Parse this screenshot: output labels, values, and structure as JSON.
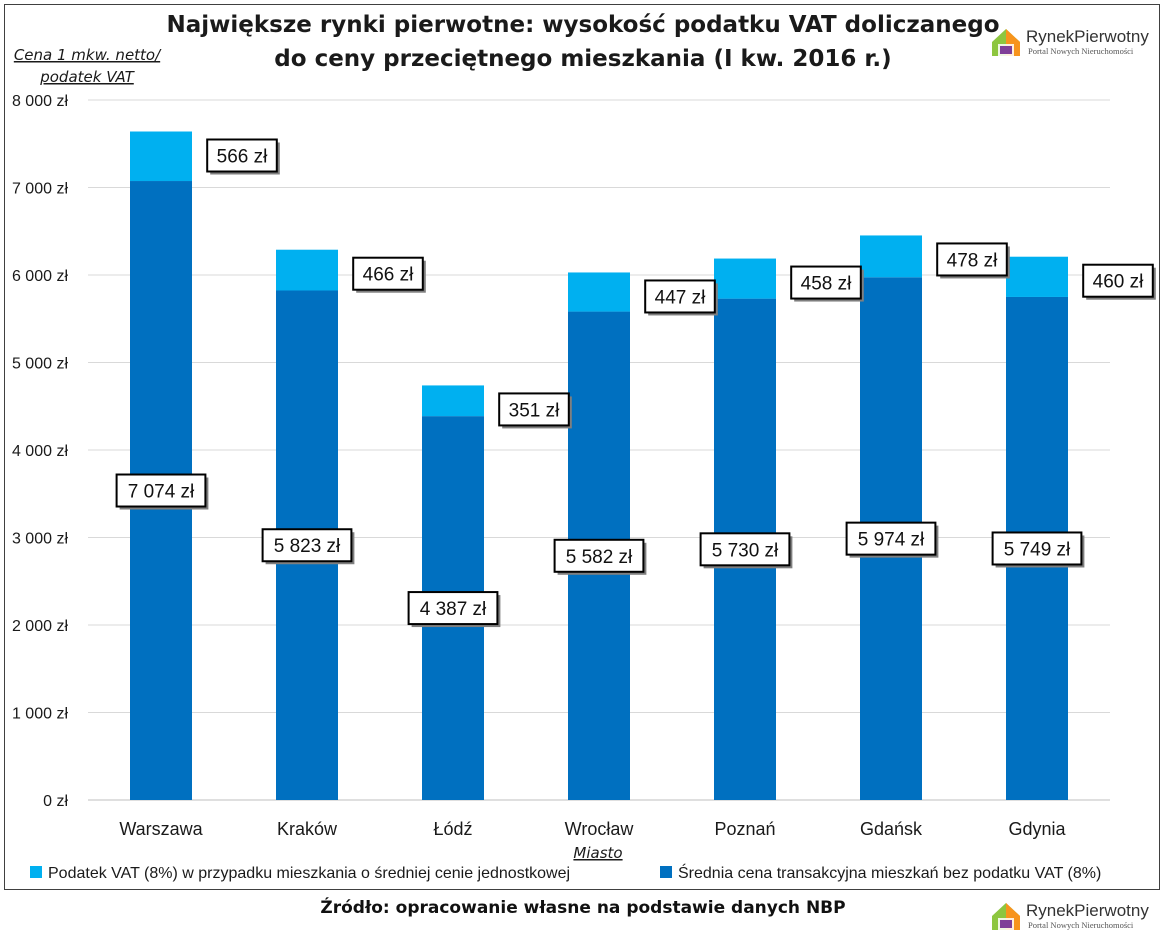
{
  "title_line1": "Największe rynki pierwotne: wysokość podatku VAT doliczanego",
  "title_line2": "do ceny przeciętnego mieszkania (I kw. 2016 r.)",
  "y_axis_label_line1": "Cena 1 mkw. netto/",
  "y_axis_label_line2": "podatek VAT",
  "x_axis_label": "Miasto",
  "source": "Źródło: opracowanie własne na podstawie danych NBP",
  "logo": {
    "name": "RynekPierwotny",
    "subtitle": "Portal Nowych Nieruchomości"
  },
  "colors": {
    "net_price": "#0070c0",
    "vat": "#00b0f0",
    "grid": "#d9d9d9"
  },
  "chart_data": {
    "type": "bar",
    "stacked": true,
    "categories": [
      "Warszawa",
      "Kraków",
      "Łódź",
      "Wrocław",
      "Poznań",
      "Gdańsk",
      "Gdynia"
    ],
    "series": [
      {
        "name": "Średnia cena transakcyjna mieszkań bez podatku VAT (8%)",
        "values": [
          7074,
          5823,
          4387,
          5582,
          5730,
          5974,
          5749
        ],
        "labels": [
          "7 074 zł",
          "5 823 zł",
          "4 387 zł",
          "5 582 zł",
          "5 730 zł",
          "5 974 zł",
          "5 749 zł"
        ]
      },
      {
        "name": "Podatek VAT (8%) w przypadku mieszkania o średniej cenie jednostkowej",
        "values": [
          566,
          466,
          351,
          447,
          458,
          478,
          460
        ],
        "labels": [
          "566 zł",
          "466 zł",
          "351 zł",
          "447 zł",
          "458 zł",
          "478 zł",
          "460 zł"
        ]
      }
    ],
    "ylim": [
      0,
      8000
    ],
    "yticks": [
      0,
      1000,
      2000,
      3000,
      4000,
      5000,
      6000,
      7000,
      8000
    ],
    "ytick_labels": [
      "0 zł",
      "1 000 zł",
      "2 000 zł",
      "3 000 zł",
      "4 000 zł",
      "5 000 zł",
      "6 000 zł",
      "7 000 zł",
      "8 000 zł"
    ],
    "grid": true,
    "legend_position": "bottom",
    "legend_order": [
      1,
      0
    ]
  }
}
